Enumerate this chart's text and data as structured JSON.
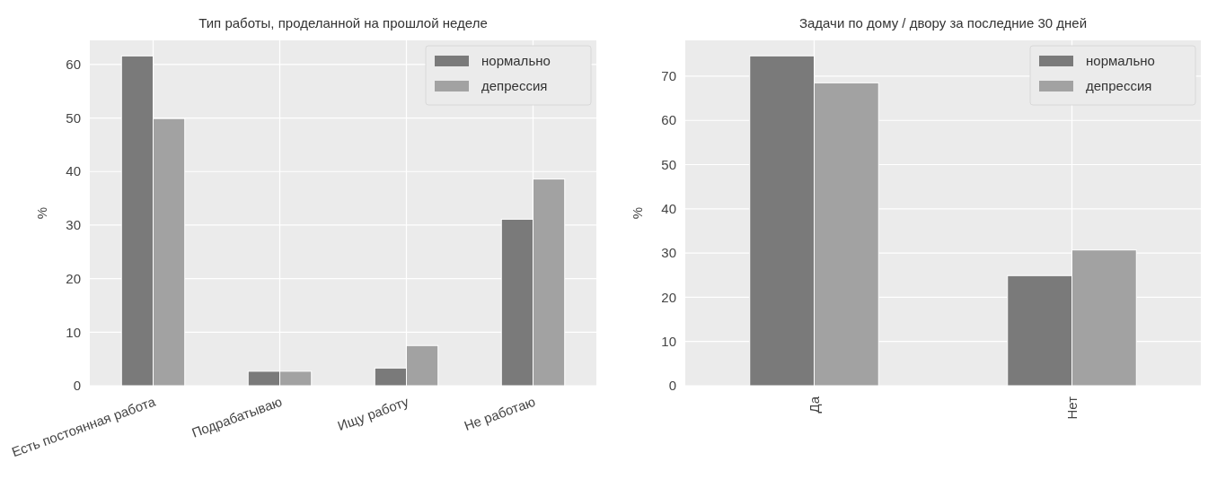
{
  "chart_data": [
    {
      "type": "bar",
      "title": "Тип работы, проделанной на прошлой неделе",
      "ylabel": "%",
      "categories": [
        "Есть постоянная работа",
        "Подрабатываю",
        "Ищу работу",
        "Не работаю"
      ],
      "series": [
        {
          "name": "нормально",
          "color": "#7a7a7a",
          "values": [
            61.6,
            2.7,
            3.3,
            31.1
          ]
        },
        {
          "name": "депрессия",
          "color": "#a2a2a2",
          "values": [
            49.9,
            2.7,
            7.5,
            38.6
          ]
        }
      ],
      "ylim": [
        0,
        64.5
      ],
      "yticks": [
        0,
        10,
        20,
        30,
        40,
        50,
        60
      ],
      "grid": true,
      "legend": "top right"
    },
    {
      "type": "bar",
      "title": "Задачи по дому / двору за последние 30 дней",
      "ylabel": "%",
      "categories": [
        "Да",
        "Нет"
      ],
      "series": [
        {
          "name": "нормально",
          "color": "#7a7a7a",
          "values": [
            74.6,
            24.9
          ]
        },
        {
          "name": "депрессия",
          "color": "#a2a2a2",
          "values": [
            68.5,
            30.7
          ]
        }
      ],
      "ylim": [
        0,
        78.1
      ],
      "yticks": [
        0,
        10,
        20,
        30,
        40,
        50,
        60,
        70
      ],
      "grid": true,
      "legend": "top right"
    }
  ]
}
